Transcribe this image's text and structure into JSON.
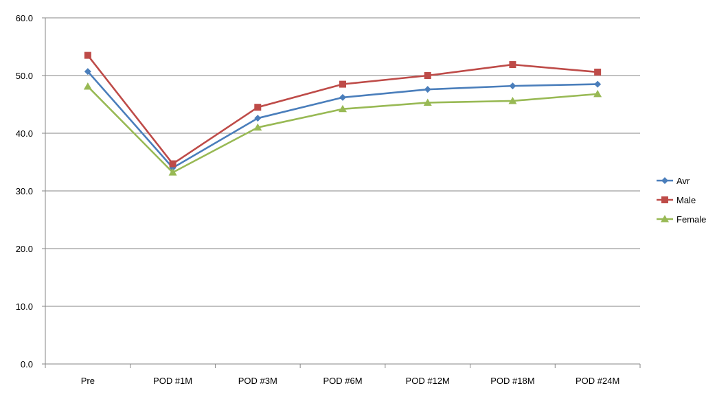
{
  "chart_data": {
    "type": "line",
    "title": "",
    "xlabel": "",
    "ylabel": "",
    "categories": [
      "Pre",
      "POD #1M",
      "POD #3M",
      "POD #6M",
      "POD #12M",
      "POD #18M",
      "POD #24M"
    ],
    "ylim": [
      0,
      60
    ],
    "yticks": [
      "0.0",
      "10.0",
      "20.0",
      "30.0",
      "40.0",
      "50.0",
      "60.0"
    ],
    "grid": true,
    "legend_position": "right",
    "series": [
      {
        "name": "Avr",
        "color": "#4a7ebb",
        "marker": "diamond",
        "values": [
          50.7,
          34.0,
          42.6,
          46.2,
          47.6,
          48.2,
          48.5
        ]
      },
      {
        "name": "Male",
        "color": "#be4b48",
        "marker": "square",
        "values": [
          53.5,
          34.7,
          44.5,
          48.5,
          50.0,
          51.9,
          50.6
        ]
      },
      {
        "name": "Female",
        "color": "#98b954",
        "marker": "triangle",
        "values": [
          48.1,
          33.2,
          41.0,
          44.2,
          45.3,
          45.6,
          46.8
        ]
      }
    ]
  }
}
